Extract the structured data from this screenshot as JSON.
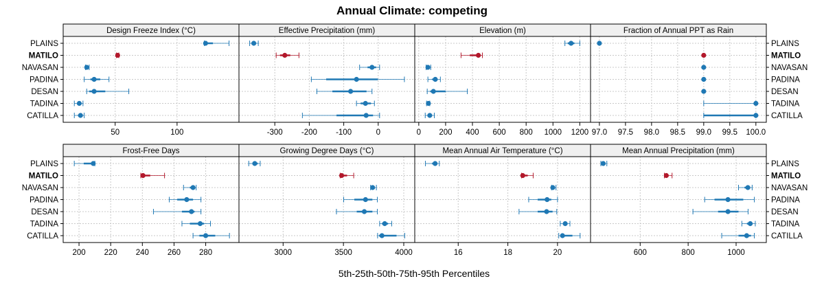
{
  "chart_data": {
    "type": "dotplot-percentile-intervals",
    "title": "Annual Climate: competing",
    "xlabel": "5th-25th-50th-75th-95th Percentiles",
    "ylabel": "",
    "grid": true,
    "categories": [
      "PLAINS",
      "MATILO",
      "NAVASAN",
      "PADINA",
      "DESAN",
      "TADINA",
      "CATILLA"
    ],
    "highlight": "MATILO",
    "colors": {
      "default": "#1f78b4",
      "highlight": "#b2182b",
      "frame": "#000000",
      "strip": "#f0f0f0",
      "grid": "#c8c8c8"
    },
    "legend": "none",
    "panels": [
      {
        "title": "Design Freeze Index (°C)",
        "xlim": [
          8,
          150
        ],
        "ticks": [
          50,
          100
        ],
        "tick_labels": [
          "50",
          "100"
        ],
        "series": [
          {
            "name": "PLAINS",
            "p5": 122,
            "p25": 122,
            "p50": 123,
            "p75": 129,
            "p95": 142
          },
          {
            "name": "MATILO",
            "p5": 51,
            "p25": 51,
            "p50": 52,
            "p75": 52,
            "p95": 53
          },
          {
            "name": "NAVASAN",
            "p5": 26,
            "p25": 26,
            "p50": 27,
            "p75": 28,
            "p95": 29
          },
          {
            "name": "PADINA",
            "p5": 25,
            "p25": 30,
            "p50": 33,
            "p75": 38,
            "p95": 45
          },
          {
            "name": "DESAN",
            "p5": 27,
            "p25": 29,
            "p50": 33,
            "p75": 42,
            "p95": 61
          },
          {
            "name": "TADINA",
            "p5": 17,
            "p25": 20,
            "p50": 21,
            "p75": 22,
            "p95": 24
          },
          {
            "name": "CATILLA",
            "p5": 17,
            "p25": 20,
            "p50": 22,
            "p75": 23,
            "p95": 25
          }
        ]
      },
      {
        "title": "Effective Precipitation (mm)",
        "xlim": [
          -404,
          106
        ],
        "ticks": [
          -300,
          -200,
          -100,
          0
        ],
        "tick_labels": [
          "-300",
          "-200",
          "-100",
          "0"
        ],
        "series": [
          {
            "name": "PLAINS",
            "p5": -373,
            "p25": -366,
            "p50": -361,
            "p75": -355,
            "p95": -348
          },
          {
            "name": "MATILO",
            "p5": -296,
            "p25": -285,
            "p50": -271,
            "p75": -255,
            "p95": -230
          },
          {
            "name": "NAVASAN",
            "p5": -54,
            "p25": -31,
            "p50": -18,
            "p75": -6,
            "p95": 4
          },
          {
            "name": "PADINA",
            "p5": -194,
            "p25": -151,
            "p50": -63,
            "p75": -1,
            "p95": 76
          },
          {
            "name": "DESAN",
            "p5": -178,
            "p25": -133,
            "p50": -80,
            "p75": -34,
            "p95": -18
          },
          {
            "name": "TADINA",
            "p5": -63,
            "p25": -51,
            "p50": -37,
            "p75": -21,
            "p95": -11
          },
          {
            "name": "CATILLA",
            "p5": -220,
            "p25": -121,
            "p50": -35,
            "p75": -15,
            "p95": 4
          }
        ]
      },
      {
        "title": "Elevation (m)",
        "xlim": [
          -30,
          1280
        ],
        "ticks": [
          0,
          200,
          400,
          600,
          800,
          1000,
          1200
        ],
        "tick_labels": [
          "0",
          "200",
          "400",
          "600",
          "800",
          "1000",
          "1200"
        ],
        "series": [
          {
            "name": "PLAINS",
            "p5": 1089,
            "p25": 1110,
            "p50": 1135,
            "p75": 1160,
            "p95": 1200
          },
          {
            "name": "MATILO",
            "p5": 315,
            "p25": 380,
            "p50": 444,
            "p75": 460,
            "p95": 474
          },
          {
            "name": "NAVASAN",
            "p5": 55,
            "p25": 60,
            "p50": 68,
            "p75": 78,
            "p95": 89
          },
          {
            "name": "PADINA",
            "p5": 68,
            "p25": 100,
            "p50": 123,
            "p75": 140,
            "p95": 161
          },
          {
            "name": "DESAN",
            "p5": 63,
            "p25": 85,
            "p50": 109,
            "p75": 200,
            "p95": 362
          },
          {
            "name": "TADINA",
            "p5": 58,
            "p25": 65,
            "p50": 72,
            "p75": 77,
            "p95": 82
          },
          {
            "name": "CATILLA",
            "p5": 48,
            "p25": 65,
            "p50": 82,
            "p75": 95,
            "p95": 116
          }
        ]
      },
      {
        "title": "Fraction of Annual PPT as Rain",
        "xlim": [
          96.83,
          100.2
        ],
        "ticks": [
          97.0,
          97.5,
          98.0,
          98.5,
          99.0,
          99.5,
          100.0
        ],
        "tick_labels": [
          "97.0",
          "97.5",
          "98.0",
          "98.5",
          "99.0",
          "99.5",
          "100.0"
        ],
        "series": [
          {
            "name": "PLAINS",
            "p5": 97,
            "p25": 97,
            "p50": 97,
            "p75": 97,
            "p95": 97
          },
          {
            "name": "MATILO",
            "p5": 99,
            "p25": 99,
            "p50": 99,
            "p75": 99,
            "p95": 99
          },
          {
            "name": "NAVASAN",
            "p5": 99,
            "p25": 99,
            "p50": 99,
            "p75": 99,
            "p95": 99
          },
          {
            "name": "PADINA",
            "p5": 99,
            "p25": 99,
            "p50": 99,
            "p75": 99,
            "p95": 99
          },
          {
            "name": "DESAN",
            "p5": 99,
            "p25": 99,
            "p50": 99,
            "p75": 99,
            "p95": 99
          },
          {
            "name": "TADINA",
            "p5": 99,
            "p25": 100,
            "p50": 100,
            "p75": 100,
            "p95": 100
          },
          {
            "name": "CATILLA",
            "p5": 99,
            "p25": 99,
            "p50": 100,
            "p75": 100,
            "p95": 100
          }
        ]
      },
      {
        "title": "Frost-Free Days",
        "xlim": [
          190,
          301
        ],
        "ticks": [
          200,
          220,
          240,
          260,
          280
        ],
        "tick_labels": [
          "200",
          "220",
          "240",
          "260",
          "280"
        ],
        "series": [
          {
            "name": "PLAINS",
            "p5": 197,
            "p25": 203,
            "p50": 209,
            "p75": 209.5,
            "p95": 210
          },
          {
            "name": "MATILO",
            "p5": 239,
            "p25": 240,
            "p50": 240.4,
            "p75": 245,
            "p95": 254
          },
          {
            "name": "NAVASAN",
            "p5": 266,
            "p25": 270,
            "p50": 272,
            "p75": 273,
            "p95": 274
          },
          {
            "name": "PADINA",
            "p5": 257,
            "p25": 262,
            "p50": 268,
            "p75": 272,
            "p95": 277
          },
          {
            "name": "DESAN",
            "p5": 247,
            "p25": 265,
            "p50": 271,
            "p75": 273,
            "p95": 277
          },
          {
            "name": "TADINA",
            "p5": 265,
            "p25": 270,
            "p50": 276.5,
            "p75": 279,
            "p95": 283
          },
          {
            "name": "CATILLA",
            "p5": 272,
            "p25": 276,
            "p50": 280,
            "p75": 286,
            "p95": 295
          }
        ]
      },
      {
        "title": "Growing Degree Days (°C)",
        "xlim": [
          2634,
          4091
        ],
        "ticks": [
          3000,
          3500,
          4000
        ],
        "tick_labels": [
          "3000",
          "3500",
          "4000"
        ],
        "series": [
          {
            "name": "PLAINS",
            "p5": 2715,
            "p25": 2745,
            "p50": 2765,
            "p75": 2790,
            "p95": 2810
          },
          {
            "name": "MATILO",
            "p5": 3473,
            "p25": 3478,
            "p50": 3485,
            "p75": 3530,
            "p95": 3585
          },
          {
            "name": "NAVASAN",
            "p5": 3725,
            "p25": 3735,
            "p50": 3742,
            "p75": 3760,
            "p95": 3773
          },
          {
            "name": "PADINA",
            "p5": 3502,
            "p25": 3590,
            "p50": 3683,
            "p75": 3740,
            "p95": 3781
          },
          {
            "name": "DESAN",
            "p5": 3442,
            "p25": 3610,
            "p50": 3673,
            "p75": 3740,
            "p95": 3781
          },
          {
            "name": "TADINA",
            "p5": 3800,
            "p25": 3820,
            "p50": 3842,
            "p75": 3870,
            "p95": 3900
          },
          {
            "name": "CATILLA",
            "p5": 3783,
            "p25": 3795,
            "p50": 3819,
            "p75": 3940,
            "p95": 4008
          }
        ]
      },
      {
        "title": "Mean Annual Air Temperature (°C)",
        "xlim": [
          14.25,
          21.33
        ],
        "ticks": [
          16,
          18,
          20
        ],
        "tick_labels": [
          "16",
          "18",
          "20"
        ],
        "series": [
          {
            "name": "PLAINS",
            "p5": 14.68,
            "p25": 14.95,
            "p50": 15.07,
            "p75": 15.15,
            "p95": 15.24
          },
          {
            "name": "MATILO",
            "p5": 18.55,
            "p25": 18.57,
            "p50": 18.6,
            "p75": 18.8,
            "p95": 19.02
          },
          {
            "name": "NAVASAN",
            "p5": 19.76,
            "p25": 19.78,
            "p50": 19.81,
            "p75": 19.88,
            "p95": 19.94
          },
          {
            "name": "PADINA",
            "p5": 18.84,
            "p25": 19.2,
            "p50": 19.58,
            "p75": 19.75,
            "p95": 20.0
          },
          {
            "name": "DESAN",
            "p5": 18.45,
            "p25": 19.2,
            "p50": 19.56,
            "p75": 19.8,
            "p95": 19.97
          },
          {
            "name": "TADINA",
            "p5": 20.11,
            "p25": 20.22,
            "p50": 20.31,
            "p75": 20.4,
            "p95": 20.5
          },
          {
            "name": "CATILLA",
            "p5": 20.05,
            "p25": 20.12,
            "p50": 20.2,
            "p75": 20.6,
            "p95": 20.91
          }
        ]
      },
      {
        "title": "Mean Annual Precipitation (mm)",
        "xlim": [
          393,
          1126
        ],
        "ticks": [
          600,
          800,
          1000
        ],
        "tick_labels": [
          "600",
          "800",
          "1000"
        ],
        "series": [
          {
            "name": "PLAINS",
            "p5": 436,
            "p25": 440,
            "p50": 446,
            "p75": 452,
            "p95": 461
          },
          {
            "name": "MATILO",
            "p5": 701,
            "p25": 704,
            "p50": 709,
            "p75": 718,
            "p95": 733
          },
          {
            "name": "NAVASAN",
            "p5": 1010,
            "p25": 1035,
            "p50": 1049,
            "p75": 1058,
            "p95": 1067
          },
          {
            "name": "PADINA",
            "p5": 869,
            "p25": 910,
            "p50": 966,
            "p75": 1030,
            "p95": 1076
          },
          {
            "name": "DESAN",
            "p5": 820,
            "p25": 925,
            "p50": 966,
            "p75": 1010,
            "p95": 1050
          },
          {
            "name": "TADINA",
            "p5": 1024,
            "p25": 1045,
            "p50": 1059,
            "p75": 1068,
            "p95": 1080
          },
          {
            "name": "CATILLA",
            "p5": 940,
            "p25": 1010,
            "p50": 1044,
            "p75": 1062,
            "p95": 1076
          }
        ]
      }
    ]
  }
}
